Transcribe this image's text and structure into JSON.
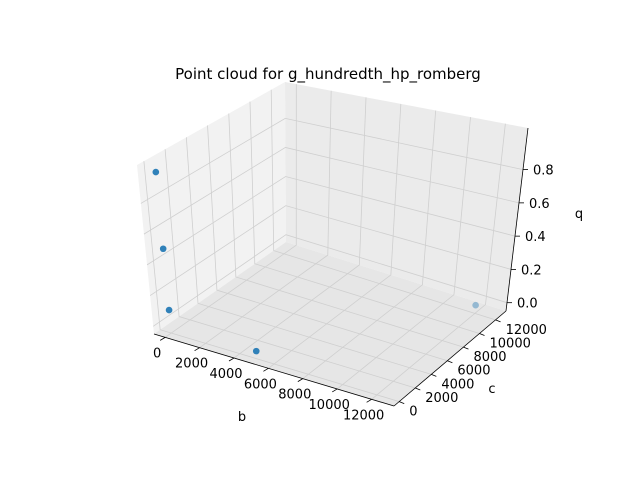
{
  "chart_data": {
    "type": "scatter",
    "projection": "3d",
    "title": "Point cloud for g_hundredth_hp_romberg",
    "xlabel": "b",
    "ylabel": "c",
    "zlabel": "q",
    "x_ticks": [
      "0",
      "2000",
      "4000",
      "6000",
      "8000",
      "10000",
      "12000"
    ],
    "y_ticks": [
      "0",
      "2000",
      "4000",
      "6000",
      "8000",
      "10000",
      "12000"
    ],
    "z_ticks": [
      "0.0",
      "0.2",
      "0.4",
      "0.6",
      "0.8"
    ],
    "grid": true,
    "marker_color": "#1f77b4",
    "points": [
      {
        "x": 0,
        "y": 0,
        "z": 1.0
      },
      {
        "x": 0,
        "y": 0,
        "z": 0.5
      },
      {
        "x": 0,
        "y": 0,
        "z": 0.1
      },
      {
        "x": 5000,
        "y": 0,
        "z": 0.0
      },
      {
        "x": 12000,
        "y": 12000,
        "z": 0.0
      }
    ]
  }
}
